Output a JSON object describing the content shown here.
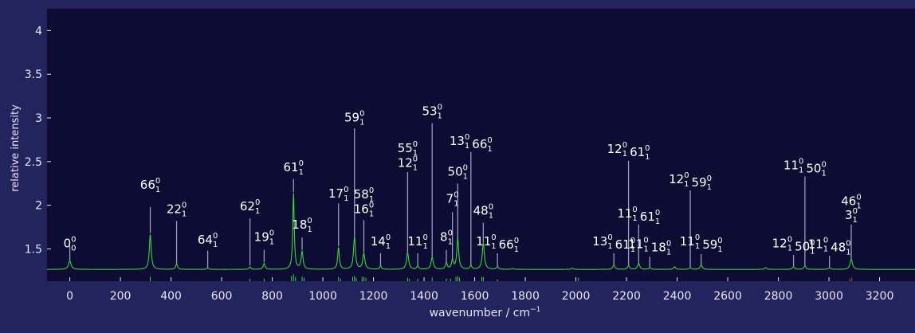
{
  "colors": {
    "page_bg": "#23245e",
    "plot_bg": "#0d0d33",
    "axis_text": "#e6e6f5",
    "spectrum_line": "#3ed13e",
    "stick": "#3ed13e",
    "leader_line": "#9a9ac8",
    "label_text": "#ffffff"
  },
  "chart_data": {
    "type": "line",
    "title": "",
    "xlabel": "wavenumber / cm",
    "xlabel_sup": "−1",
    "ylabel": "relative intensity",
    "xlim": [
      -90,
      3340
    ],
    "ylim": [
      1.13,
      4.25
    ],
    "xticks": [
      0,
      200,
      400,
      600,
      800,
      1000,
      1200,
      1400,
      1600,
      1800,
      2000,
      2200,
      2400,
      2600,
      2800,
      3000,
      3200
    ],
    "yticks": [
      1.5,
      2,
      2.5,
      3,
      3.5,
      4
    ],
    "ytick_labels": [
      "1.5",
      "2",
      "2.5",
      "3",
      "3.5",
      "4"
    ],
    "grid": false,
    "baseline": 1.265,
    "series": [
      {
        "peaks": [
          {
            "x": 0,
            "h": 0.1,
            "w": 12
          },
          {
            "x": 318,
            "h": 0.4,
            "w": 9
          },
          {
            "x": 422,
            "h": 0.06,
            "w": 9
          },
          {
            "x": 545,
            "h": 0.02,
            "w": 8
          },
          {
            "x": 712,
            "h": 0.03,
            "w": 8
          },
          {
            "x": 768,
            "h": 0.07,
            "w": 9
          },
          {
            "x": 884,
            "h": 0.87,
            "w": 7
          },
          {
            "x": 918,
            "h": 0.2,
            "w": 9
          },
          {
            "x": 1062,
            "h": 0.25,
            "w": 8
          },
          {
            "x": 1125,
            "h": 0.37,
            "w": 9
          },
          {
            "x": 1162,
            "h": 0.18,
            "w": 10
          },
          {
            "x": 1228,
            "h": 0.04,
            "w": 8
          },
          {
            "x": 1335,
            "h": 0.19,
            "w": 10
          },
          {
            "x": 1375,
            "h": 0.04,
            "w": 8
          },
          {
            "x": 1432,
            "h": 0.14,
            "w": 10
          },
          {
            "x": 1488,
            "h": 0.07,
            "w": 9
          },
          {
            "x": 1512,
            "h": 0.1,
            "w": 9
          },
          {
            "x": 1533,
            "h": 0.35,
            "w": 9
          },
          {
            "x": 1585,
            "h": 0.04,
            "w": 9
          },
          {
            "x": 1634,
            "h": 0.3,
            "w": 10
          },
          {
            "x": 1690,
            "h": 0.03,
            "w": 9
          },
          {
            "x": 1750,
            "h": 0.01,
            "w": 9
          },
          {
            "x": 1985,
            "h": 0.015,
            "w": 10
          },
          {
            "x": 2150,
            "h": 0.05,
            "w": 10
          },
          {
            "x": 2208,
            "h": 0.04,
            "w": 10
          },
          {
            "x": 2248,
            "h": 0.07,
            "w": 10
          },
          {
            "x": 2292,
            "h": 0.02,
            "w": 10
          },
          {
            "x": 2390,
            "h": 0.03,
            "w": 10
          },
          {
            "x": 2452,
            "h": 0.02,
            "w": 10
          },
          {
            "x": 2495,
            "h": 0.05,
            "w": 10
          },
          {
            "x": 2750,
            "h": 0.02,
            "w": 10
          },
          {
            "x": 2860,
            "h": 0.03,
            "w": 10
          },
          {
            "x": 2905,
            "h": 0.04,
            "w": 10
          },
          {
            "x": 3002,
            "h": 0.02,
            "w": 10
          },
          {
            "x": 3088,
            "h": 0.12,
            "w": 11
          }
        ]
      }
    ],
    "sticks": [
      {
        "x": 318,
        "h": 0.05
      },
      {
        "x": 712,
        "h": 0.03
      },
      {
        "x": 768,
        "h": 0.03
      },
      {
        "x": 876,
        "h": 0.06
      },
      {
        "x": 884,
        "h": 0.08
      },
      {
        "x": 892,
        "h": 0.05
      },
      {
        "x": 918,
        "h": 0.05
      },
      {
        "x": 926,
        "h": 0.04
      },
      {
        "x": 1062,
        "h": 0.05
      },
      {
        "x": 1070,
        "h": 0.03
      },
      {
        "x": 1118,
        "h": 0.05
      },
      {
        "x": 1125,
        "h": 0.06
      },
      {
        "x": 1132,
        "h": 0.04
      },
      {
        "x": 1155,
        "h": 0.05
      },
      {
        "x": 1162,
        "h": 0.05
      },
      {
        "x": 1170,
        "h": 0.04
      },
      {
        "x": 1335,
        "h": 0.04
      },
      {
        "x": 1342,
        "h": 0.03
      },
      {
        "x": 1375,
        "h": 0.03
      },
      {
        "x": 1432,
        "h": 0.04
      },
      {
        "x": 1488,
        "h": 0.03
      },
      {
        "x": 1505,
        "h": 0.03
      },
      {
        "x": 1526,
        "h": 0.05
      },
      {
        "x": 1533,
        "h": 0.06
      },
      {
        "x": 1540,
        "h": 0.04
      },
      {
        "x": 1628,
        "h": 0.05
      },
      {
        "x": 1634,
        "h": 0.05
      },
      {
        "x": 1690,
        "h": 0.02
      },
      {
        "x": 2010,
        "h": 0.04
      },
      {
        "x": 3082,
        "h": 0.03,
        "color": "#e0303a"
      },
      {
        "x": 3090,
        "h": 0.04,
        "color": "#e0303a"
      }
    ],
    "annotations": [
      {
        "x": 0,
        "tip": 1.37,
        "top": 1.53,
        "label_y": 1.52,
        "parts": [
          {
            "base": "0",
            "sup": "0",
            "sub": "0"
          }
        ]
      },
      {
        "x": 318,
        "tip": 1.68,
        "top": 1.98,
        "label_y": 2.19,
        "parts": [
          {
            "base": "66",
            "sup": "0",
            "sub": "1"
          }
        ]
      },
      {
        "x": 422,
        "tip": 1.33,
        "top": 1.82,
        "label_y": 1.91,
        "parts": [
          {
            "base": "22",
            "sup": "0",
            "sub": "1"
          }
        ]
      },
      {
        "x": 545,
        "tip": 1.29,
        "top": 1.48,
        "label_y": 1.56,
        "parts": [
          {
            "base": "64",
            "sup": "0",
            "sub": "1"
          }
        ]
      },
      {
        "x": 712,
        "tip": 1.31,
        "top": 1.85,
        "label_y": 1.94,
        "parts": [
          {
            "base": "62",
            "sup": "0",
            "sub": "1"
          }
        ]
      },
      {
        "x": 768,
        "tip": 1.35,
        "top": 1.49,
        "label_y": 1.59,
        "parts": [
          {
            "base": "19",
            "sup": "0",
            "sub": "1"
          }
        ]
      },
      {
        "x": 884,
        "tip": 2.15,
        "top": 2.3,
        "label_y": 2.39,
        "parts": [
          {
            "base": "61",
            "sup": "0",
            "sub": "1"
          }
        ]
      },
      {
        "x": 918,
        "tip": 1.49,
        "top": 1.63,
        "label_y": 1.73,
        "parts": [
          {
            "base": "18",
            "sup": "0",
            "sub": "1"
          }
        ]
      },
      {
        "x": 1062,
        "tip": 1.53,
        "top": 2.02,
        "label_y": 2.09,
        "parts": [
          {
            "base": "17",
            "sup": "0",
            "sub": "1"
          }
        ]
      },
      {
        "x": 1125,
        "tip": 1.64,
        "top": 2.88,
        "label_y": 2.96,
        "parts": [
          {
            "base": "59",
            "sup": "0",
            "sub": "1"
          }
        ]
      },
      {
        "x": 1162,
        "tip": 1.46,
        "top": 1.83,
        "label_y": 1.91,
        "parts": [
          {
            "base": "16",
            "sup": "0",
            "sub": "1"
          }
        ]
      },
      {
        "x": 1228,
        "tip": 1.31,
        "top": 1.45,
        "label_y": 1.54,
        "parts": [
          {
            "base": "14",
            "sup": "0",
            "sub": "1"
          }
        ]
      },
      {
        "x": 1335,
        "tip": 1.46,
        "top": 2.38,
        "label_y": 2.44,
        "parts": [
          {
            "base": "12",
            "sup": "0",
            "sub": "1"
          }
        ]
      },
      {
        "x": 1375,
        "tip": 1.31,
        "top": 1.45,
        "label_y": 1.54,
        "parts": [
          {
            "base": "11",
            "sup": "0",
            "sub": "1"
          }
        ]
      },
      {
        "x": 1432,
        "tip": 1.41,
        "top": 2.94,
        "label_y": 3.03,
        "parts": [
          {
            "base": "53",
            "sup": "0",
            "sub": "1"
          }
        ]
      },
      {
        "x": 1488,
        "tip": 1.34,
        "top": 1.49,
        "label_y": 1.59,
        "parts": [
          {
            "base": "8",
            "sup": "0",
            "sub": "1"
          }
        ]
      },
      {
        "x": 1512,
        "tip": 1.37,
        "top": 1.92,
        "label_y": 2.03,
        "parts": [
          {
            "base": "7",
            "sup": "0",
            "sub": "1"
          }
        ]
      },
      {
        "x": 1533,
        "tip": 1.62,
        "top": 2.25,
        "label_y": 2.34,
        "parts": [
          {
            "base": "50",
            "sup": "0",
            "sub": "1"
          }
        ]
      },
      {
        "x": 1585,
        "tip": 1.31,
        "top": 2.61,
        "label_y": 2.69,
        "parts": [
          {
            "base": "13",
            "sup": "0",
            "sub": "1"
          },
          {
            "base": "66",
            "sup": "0",
            "sub": "1"
          }
        ]
      },
      {
        "x": 1634,
        "tip": 1.57,
        "top": 1.8,
        "label_y": 1.89,
        "parts": [
          {
            "base": "48",
            "sup": "0",
            "sub": "1"
          }
        ]
      },
      {
        "x": 1690,
        "tip": 1.3,
        "top": 1.45,
        "label_y": 1.54,
        "parts": [
          {
            "base": "11",
            "sup": "0",
            "sub": "1"
          },
          {
            "base": "66",
            "sup": "0",
            "sub": "1"
          }
        ]
      },
      {
        "x": 2150,
        "tip": 1.32,
        "top": 1.45,
        "label_y": 1.54,
        "parts": [
          {
            "base": "13",
            "sup": "0",
            "sub": "1"
          },
          {
            "base": "61",
            "sup": "0",
            "sub": "1"
          }
        ]
      },
      {
        "x": 2208,
        "tip": 1.31,
        "top": 2.51,
        "label_y": 2.6,
        "parts": [
          {
            "base": "12",
            "sup": "0",
            "sub": "1"
          },
          {
            "base": "61",
            "sup": "0",
            "sub": "1"
          }
        ]
      },
      {
        "x": 2248,
        "tip": 1.34,
        "top": 1.78,
        "label_y": 1.86,
        "parts": [
          {
            "base": "11",
            "sup": "0",
            "sub": "1"
          },
          {
            "base": "61",
            "sup": "0",
            "sub": "1"
          }
        ]
      },
      {
        "x": 2292,
        "tip": 1.29,
        "top": 1.41,
        "label_y": 1.51,
        "parts": [
          {
            "base": "11",
            "sup": "0",
            "sub": "1"
          },
          {
            "base": "18",
            "sup": "0",
            "sub": "1"
          }
        ]
      },
      {
        "x": 2452,
        "tip": 1.29,
        "top": 2.17,
        "label_y": 2.25,
        "parts": [
          {
            "base": "12",
            "sup": "0",
            "sub": "1"
          },
          {
            "base": "59",
            "sup": "0",
            "sub": "1"
          }
        ]
      },
      {
        "x": 2495,
        "tip": 1.32,
        "top": 1.44,
        "label_y": 1.54,
        "parts": [
          {
            "base": "11",
            "sup": "0",
            "sub": "1"
          },
          {
            "base": "59",
            "sup": "0",
            "sub": "1"
          }
        ]
      },
      {
        "x": 2860,
        "tip": 1.3,
        "top": 1.43,
        "label_y": 1.52,
        "parts": [
          {
            "base": "12",
            "sup": "0",
            "sub": "1"
          },
          {
            "base": "50",
            "sup": "0",
            "sub": "1"
          }
        ]
      },
      {
        "x": 2905,
        "tip": 1.31,
        "top": 2.33,
        "label_y": 2.41,
        "parts": [
          {
            "base": "11",
            "sup": "0",
            "sub": "1"
          },
          {
            "base": "50",
            "sup": "0",
            "sub": "1"
          }
        ]
      },
      {
        "x": 3002,
        "tip": 1.29,
        "top": 1.42,
        "label_y": 1.51,
        "parts": [
          {
            "base": "11",
            "sup": "0",
            "sub": "1"
          },
          {
            "base": "48",
            "sup": "0",
            "sub": "1"
          }
        ]
      },
      {
        "x": 3088,
        "tip": 1.39,
        "top": 1.78,
        "label_y": 1.84,
        "parts": [
          {
            "base": "3",
            "sup": "0",
            "sub": "1"
          }
        ]
      },
      {
        "x": 3088,
        "tip": 1.39,
        "top": 1.78,
        "label_y": 2.0,
        "line": false,
        "parts": [
          {
            "base": "46",
            "sup": "0",
            "sub": "1"
          }
        ]
      },
      {
        "x": 1162,
        "tip": 1.46,
        "top": 1.83,
        "label_y": 2.08,
        "line": false,
        "parts": [
          {
            "base": "58",
            "sup": "0",
            "sub": "1"
          }
        ]
      },
      {
        "x": 1335,
        "tip": 1.46,
        "top": 2.38,
        "label_y": 2.61,
        "line": false,
        "parts": [
          {
            "base": "55",
            "sup": "0",
            "sub": "1"
          }
        ]
      }
    ]
  }
}
